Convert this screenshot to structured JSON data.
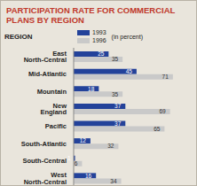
{
  "chart_data": {
    "type": "bar",
    "title": "PARTICIPATION RATE FOR COMMERCIAL PLANS BY REGION",
    "y_label": "REGION",
    "x_label": "(in percent)",
    "orientation": "horizontal",
    "categories": [
      "East North-Central",
      "Mid-Atlantic",
      "Mountain",
      "New England",
      "Pacific",
      "South-Atlantic",
      "South-Central",
      "West North-Central"
    ],
    "series": [
      {
        "name": "1993",
        "color": "#23429a",
        "values": [
          25,
          45,
          18,
          37,
          37,
          12,
          1,
          16
        ]
      },
      {
        "name": "1996",
        "color": "#c9c9c9",
        "values": [
          35,
          71,
          35,
          69,
          65,
          32,
          6,
          34
        ]
      }
    ],
    "xlim": [
      0,
      80
    ],
    "data_labels": true,
    "tick_labels": "y",
    "legend": "top",
    "grid": false
  }
}
